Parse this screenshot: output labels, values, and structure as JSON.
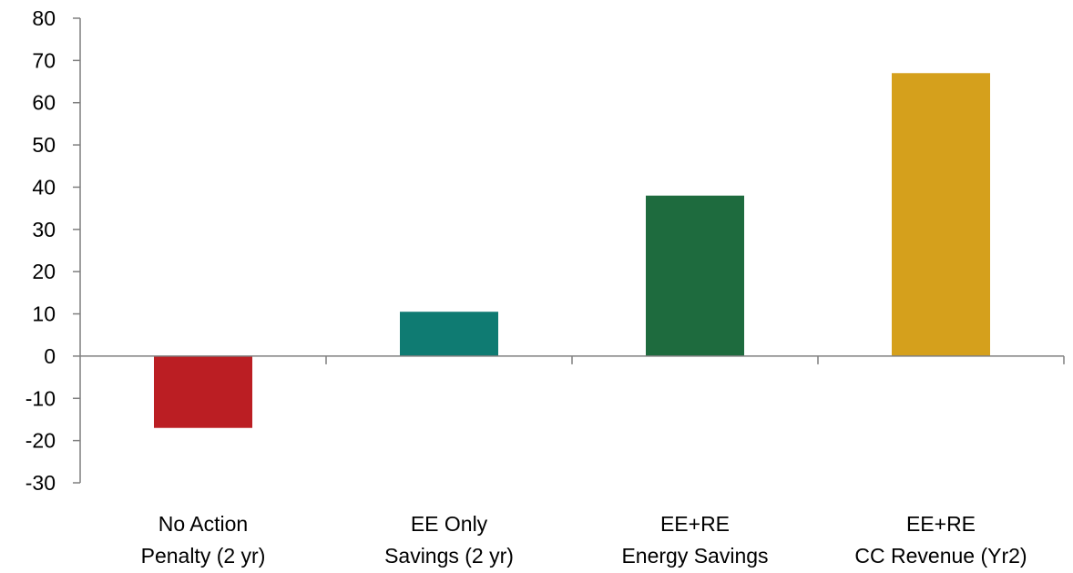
{
  "chart_data": {
    "type": "bar",
    "categories": [
      [
        "No Action",
        "Penalty (2 yr)"
      ],
      [
        "EE Only",
        "Savings (2 yr)"
      ],
      [
        "EE+RE",
        "Energy Savings"
      ],
      [
        "EE+RE",
        "CC Revenue (Yr2)"
      ]
    ],
    "values": [
      -17,
      10.5,
      38,
      67
    ],
    "colors": [
      "#bb1e23",
      "#0f7b72",
      "#1e6b3e",
      "#d5a01c"
    ],
    "ylim": [
      -30,
      80
    ],
    "yticks": [
      80,
      70,
      60,
      50,
      40,
      30,
      20,
      10,
      0,
      -10,
      -20,
      -30
    ],
    "ytick_labels": [
      "80",
      "70",
      "60",
      "50",
      "40",
      "30",
      "20",
      "10",
      "0",
      "-10",
      "-20",
      "-30"
    ],
    "title": "",
    "xlabel": "",
    "ylabel": "",
    "grid": false,
    "legend": false
  }
}
